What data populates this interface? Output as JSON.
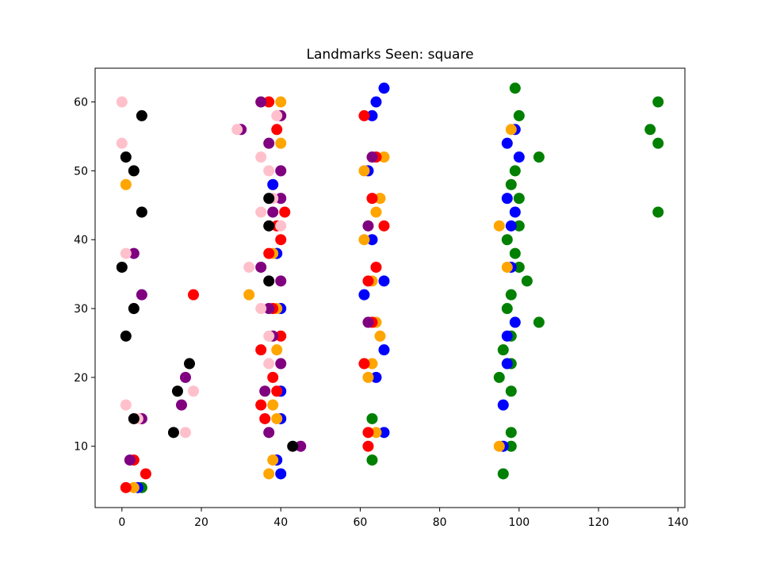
{
  "chart_data": {
    "type": "scatter",
    "title": "Landmarks Seen: square",
    "xlabel": "",
    "ylabel": "",
    "xlim": [
      -6.75,
      141.75
    ],
    "ylim": [
      1.1,
      64.9
    ],
    "x_ticks": [
      0,
      20,
      40,
      60,
      80,
      100,
      120,
      140
    ],
    "y_ticks": [
      10,
      20,
      30,
      40,
      50,
      60
    ],
    "grid": false,
    "series": [
      {
        "color": "#008000",
        "points": [
          [
            5,
            4
          ],
          [
            63,
            8
          ],
          [
            63,
            14
          ],
          [
            96,
            6
          ],
          [
            98,
            10
          ],
          [
            98,
            12
          ],
          [
            98,
            18
          ],
          [
            95,
            20
          ],
          [
            98,
            22
          ],
          [
            96,
            24
          ],
          [
            98,
            26
          ],
          [
            105,
            28
          ],
          [
            97,
            30
          ],
          [
            98,
            32
          ],
          [
            102,
            34
          ],
          [
            100,
            36
          ],
          [
            99,
            38
          ],
          [
            97,
            40
          ],
          [
            100,
            42
          ],
          [
            100,
            46
          ],
          [
            98,
            48
          ],
          [
            99,
            50
          ],
          [
            105,
            52
          ],
          [
            100,
            58
          ],
          [
            99,
            62
          ],
          [
            135,
            44
          ],
          [
            135,
            54
          ],
          [
            133,
            56
          ],
          [
            135,
            60
          ]
        ]
      },
      {
        "color": "#0000ff",
        "points": [
          [
            4,
            4
          ],
          [
            40,
            6
          ],
          [
            39,
            8
          ],
          [
            40,
            14
          ],
          [
            40,
            18
          ],
          [
            64,
            20
          ],
          [
            66,
            12
          ],
          [
            96,
            10
          ],
          [
            96,
            16
          ],
          [
            97,
            22
          ],
          [
            97,
            26
          ],
          [
            99,
            28
          ],
          [
            66,
            24
          ],
          [
            61,
            32
          ],
          [
            66,
            34
          ],
          [
            40,
            30
          ],
          [
            39,
            38
          ],
          [
            98,
            36
          ],
          [
            63,
            40
          ],
          [
            98,
            42
          ],
          [
            99,
            44
          ],
          [
            97,
            46
          ],
          [
            38,
            48
          ],
          [
            62,
            50
          ],
          [
            100,
            52
          ],
          [
            97,
            54
          ],
          [
            99,
            56
          ],
          [
            63,
            58
          ],
          [
            64,
            60
          ],
          [
            66,
            62
          ]
        ]
      },
      {
        "color": "#ffa500",
        "points": [
          [
            3,
            4
          ],
          [
            37,
            6
          ],
          [
            38,
            8
          ],
          [
            39,
            14
          ],
          [
            38,
            16
          ],
          [
            39,
            24
          ],
          [
            64,
            12
          ],
          [
            62,
            20
          ],
          [
            63,
            22
          ],
          [
            65,
            26
          ],
          [
            64,
            28
          ],
          [
            95,
            10
          ],
          [
            32,
            32
          ],
          [
            39,
            30
          ],
          [
            63,
            34
          ],
          [
            97,
            36
          ],
          [
            38,
            38
          ],
          [
            61,
            40
          ],
          [
            95,
            42
          ],
          [
            64,
            44
          ],
          [
            65,
            46
          ],
          [
            1,
            48
          ],
          [
            61,
            50
          ],
          [
            66,
            52
          ],
          [
            40,
            54
          ],
          [
            98,
            56
          ],
          [
            40,
            60
          ]
        ]
      },
      {
        "color": "#ff0000",
        "points": [
          [
            1,
            4
          ],
          [
            6,
            6
          ],
          [
            3,
            8
          ],
          [
            18,
            32
          ],
          [
            41,
            44
          ],
          [
            40,
            40
          ],
          [
            37,
            38
          ],
          [
            39,
            42
          ],
          [
            38,
            30
          ],
          [
            36,
            14
          ],
          [
            39,
            18
          ],
          [
            35,
            16
          ],
          [
            38,
            20
          ],
          [
            40,
            26
          ],
          [
            35,
            24
          ],
          [
            62,
            10
          ],
          [
            62,
            12
          ],
          [
            61,
            22
          ],
          [
            62,
            34
          ],
          [
            64,
            36
          ],
          [
            66,
            42
          ],
          [
            63,
            46
          ],
          [
            63,
            28
          ],
          [
            64,
            52
          ],
          [
            39,
            56
          ],
          [
            61,
            58
          ],
          [
            37,
            60
          ]
        ]
      },
      {
        "color": "#800080",
        "points": [
          [
            2,
            8
          ],
          [
            5,
            14
          ],
          [
            15,
            16
          ],
          [
            16,
            20
          ],
          [
            5,
            32
          ],
          [
            3,
            38
          ],
          [
            45,
            10
          ],
          [
            37,
            12
          ],
          [
            40,
            22
          ],
          [
            36,
            18
          ],
          [
            38,
            26
          ],
          [
            37,
            30
          ],
          [
            40,
            34
          ],
          [
            35,
            36
          ],
          [
            38,
            44
          ],
          [
            40,
            46
          ],
          [
            62,
            42
          ],
          [
            62,
            28
          ],
          [
            40,
            50
          ],
          [
            37,
            54
          ],
          [
            63,
            52
          ],
          [
            30,
            56
          ],
          [
            40,
            58
          ],
          [
            35,
            60
          ]
        ]
      },
      {
        "color": "#ffc0cb",
        "points": [
          [
            16,
            12
          ],
          [
            18,
            18
          ],
          [
            1,
            16
          ],
          [
            4,
            14
          ],
          [
            1,
            38
          ],
          [
            0,
            54
          ],
          [
            0,
            60
          ],
          [
            29,
            56
          ],
          [
            35,
            52
          ],
          [
            35,
            44
          ],
          [
            37,
            50
          ],
          [
            38,
            46
          ],
          [
            40,
            42
          ],
          [
            32,
            36
          ],
          [
            35,
            30
          ],
          [
            37,
            26
          ],
          [
            37,
            22
          ],
          [
            39,
            58
          ]
        ]
      },
      {
        "color": "#000000",
        "points": [
          [
            3,
            14
          ],
          [
            13,
            12
          ],
          [
            14,
            18
          ],
          [
            17,
            22
          ],
          [
            1,
            26
          ],
          [
            3,
            30
          ],
          [
            0,
            36
          ],
          [
            5,
            44
          ],
          [
            3,
            50
          ],
          [
            1,
            52
          ],
          [
            5,
            58
          ],
          [
            43,
            10
          ],
          [
            37,
            34
          ],
          [
            37,
            42
          ],
          [
            37,
            46
          ]
        ]
      }
    ]
  }
}
